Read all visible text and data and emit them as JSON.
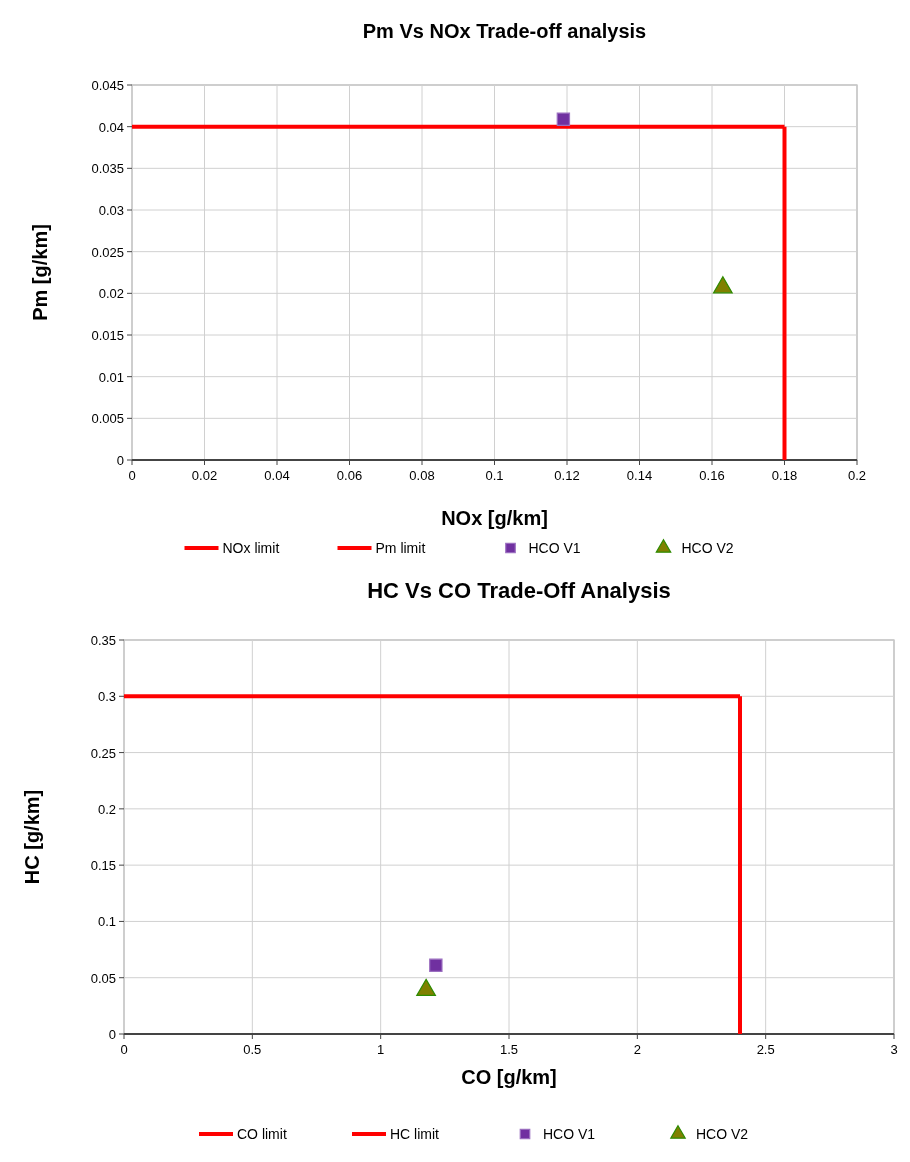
{
  "chart_data": [
    {
      "type": "scatter",
      "title": "Pm Vs NOx Trade-off analysis",
      "xlabel": "NOx [g/km]",
      "ylabel": "Pm [g/km]",
      "xlim": [
        0,
        0.2
      ],
      "xticks": [
        0,
        0.02,
        0.04,
        0.06,
        0.08,
        0.1,
        0.12,
        0.14,
        0.16,
        0.18,
        0.2
      ],
      "ylim": [
        0,
        0.045
      ],
      "yticks": [
        0,
        0.005,
        0.01,
        0.015,
        0.02,
        0.025,
        0.03,
        0.035,
        0.04,
        0.045
      ],
      "grid": true,
      "legend": "bottom",
      "series": [
        {
          "name": "NOx limit",
          "type": "line",
          "color": "#ff0000",
          "x": [
            0.18,
            0.18
          ],
          "values": [
            0,
            0.04
          ]
        },
        {
          "name": "Pm limit",
          "type": "line",
          "color": "#ff0000",
          "x": [
            0,
            0.18
          ],
          "values": [
            0.04,
            0.04
          ]
        },
        {
          "name": "HCO V1",
          "color": "#7030a0",
          "marker": "square",
          "x": [
            0.119
          ],
          "values": [
            0.0409
          ]
        },
        {
          "name": "HCO V2",
          "color": "#808000",
          "marker": "triangle",
          "x": [
            0.163
          ],
          "values": [
            0.0207
          ]
        }
      ]
    },
    {
      "type": "scatter",
      "title": "HC Vs CO Trade-Off Analysis",
      "xlabel": "CO [g/km]",
      "ylabel": "HC [g/km]",
      "xlim": [
        0,
        3
      ],
      "xticks": [
        0,
        0.5,
        1,
        1.5,
        2,
        2.5,
        3
      ],
      "ylim": [
        0,
        0.35
      ],
      "yticks": [
        0,
        0.05,
        0.1,
        0.15,
        0.2,
        0.25,
        0.3,
        0.35
      ],
      "grid": true,
      "legend": "bottom",
      "series": [
        {
          "name": "CO limit",
          "type": "line",
          "color": "#ff0000",
          "x": [
            2.4,
            2.4
          ],
          "values": [
            0,
            0.3
          ]
        },
        {
          "name": "HC limit",
          "type": "line",
          "color": "#ff0000",
          "x": [
            0,
            2.4
          ],
          "values": [
            0.3,
            0.3
          ]
        },
        {
          "name": "HCO V1",
          "color": "#7030a0",
          "marker": "square",
          "x": [
            1.215
          ],
          "values": [
            0.061
          ]
        },
        {
          "name": "HCO V2",
          "color": "#808000",
          "marker": "triangle",
          "x": [
            1.177
          ],
          "values": [
            0.039
          ]
        }
      ]
    }
  ]
}
